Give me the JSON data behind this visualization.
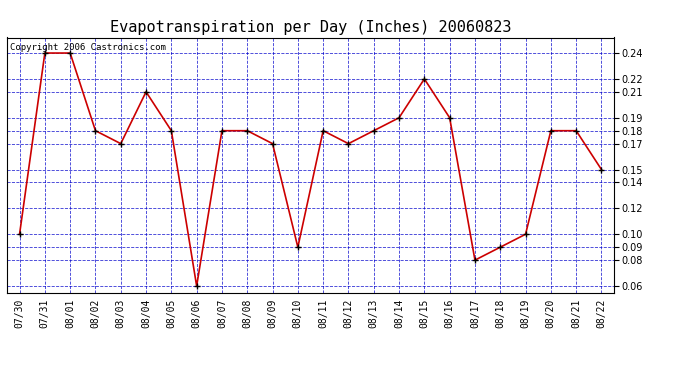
{
  "title": "Evapotranspiration per Day (Inches) 20060823",
  "copyright_text": "Copyright 2006 Castronics.com",
  "dates": [
    "07/30",
    "07/31",
    "08/01",
    "08/02",
    "08/03",
    "08/04",
    "08/05",
    "08/06",
    "08/07",
    "08/08",
    "08/09",
    "08/10",
    "08/11",
    "08/12",
    "08/13",
    "08/14",
    "08/15",
    "08/16",
    "08/17",
    "08/18",
    "08/19",
    "08/20",
    "08/21",
    "08/22"
  ],
  "values": [
    0.1,
    0.24,
    0.24,
    0.18,
    0.17,
    0.21,
    0.18,
    0.06,
    0.18,
    0.18,
    0.17,
    0.09,
    0.18,
    0.17,
    0.18,
    0.19,
    0.22,
    0.19,
    0.08,
    0.09,
    0.1,
    0.18,
    0.18,
    0.15
  ],
  "line_color": "#cc0000",
  "marker_color": "#000000",
  "grid_color": "#0000cc",
  "background_color": "#ffffff",
  "plot_bg_color": "#ffffff",
  "ylim": [
    0.055,
    0.252
  ],
  "yticks": [
    0.06,
    0.08,
    0.09,
    0.1,
    0.12,
    0.14,
    0.15,
    0.17,
    0.18,
    0.19,
    0.21,
    0.22,
    0.24
  ],
  "title_fontsize": 11,
  "tick_fontsize": 7,
  "copyright_fontsize": 6.5
}
